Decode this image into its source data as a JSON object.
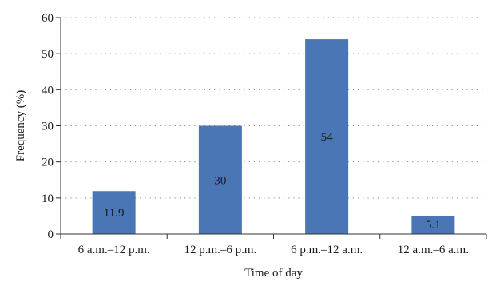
{
  "chart_data": {
    "type": "bar",
    "categories": [
      "6 a.m.–12 p.m.",
      "12 p.m.–6 p.m.",
      "6 p.m.–12 a.m.",
      "12 a.m.–6 a.m."
    ],
    "values": [
      11.9,
      30,
      54,
      5.1
    ],
    "data_labels": [
      "11.9",
      "30",
      "54",
      "5.1"
    ],
    "title": "",
    "xlabel": "Time of day",
    "ylabel": "Frequency (%)",
    "ylim": [
      0,
      60
    ],
    "yticks": [
      0,
      10,
      20,
      30,
      40,
      50,
      60
    ],
    "grid": true,
    "legend": "none",
    "bar_color": "#4a76b5"
  }
}
